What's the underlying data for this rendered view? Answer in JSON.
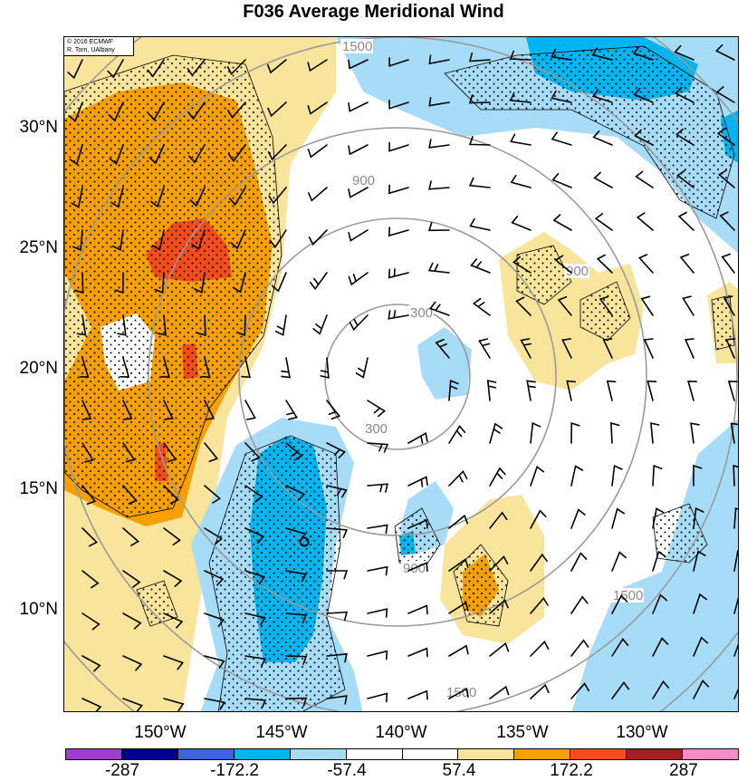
{
  "title": "F036 Average Meridional Wind",
  "credit": {
    "line1": "© 2016 ECMWF",
    "line2": "R. Torn, UAlbany"
  },
  "lat_labels": [
    "30°N",
    "25°N",
    "20°N",
    "15°N",
    "10°N"
  ],
  "lon_labels": [
    "150°W",
    "145°W",
    "140°W",
    "135°W",
    "130°W"
  ],
  "range_ring_labels": [
    "300",
    "900",
    "1500"
  ],
  "colorbar": {
    "colors": [
      "#a03cd2",
      "#00008c",
      "#3c64dc",
      "#00b4f0",
      "#a6dcf8",
      "#ffffff",
      "#ffffff",
      "#f8e49a",
      "#f5a000",
      "#f44c1a",
      "#a0221e",
      "#f58cc8"
    ],
    "labels": [
      "-287",
      "-172.2",
      "-57.4",
      "57.4",
      "172.2",
      "287"
    ]
  },
  "storm_center_marker": "circle-marker"
}
